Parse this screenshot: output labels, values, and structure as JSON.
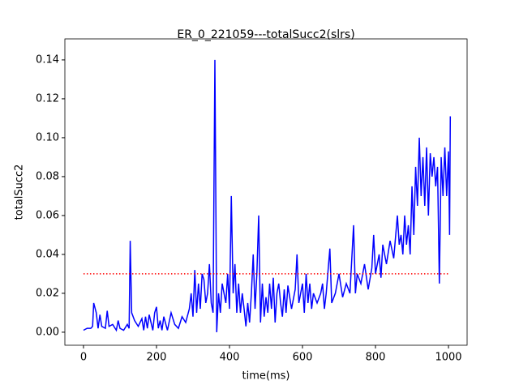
{
  "chart_data": {
    "type": "line",
    "title": "ER_0_221059---totalSucc2(slrs)",
    "x_label": "time(ms)",
    "y_label": "totalSucc2",
    "x": [
      0,
      10,
      20,
      25,
      28,
      35,
      40,
      45,
      50,
      60,
      65,
      70,
      80,
      90,
      95,
      100,
      110,
      120,
      125,
      128,
      132,
      140,
      150,
      160,
      165,
      170,
      175,
      180,
      190,
      195,
      200,
      205,
      210,
      215,
      220,
      230,
      240,
      250,
      260,
      270,
      280,
      290,
      295,
      300,
      305,
      310,
      315,
      320,
      325,
      330,
      335,
      340,
      345,
      350,
      355,
      360,
      365,
      370,
      375,
      380,
      390,
      395,
      400,
      405,
      410,
      415,
      420,
      425,
      430,
      435,
      440,
      445,
      450,
      455,
      460,
      465,
      470,
      475,
      480,
      485,
      490,
      495,
      500,
      505,
      510,
      515,
      520,
      525,
      530,
      535,
      540,
      545,
      550,
      555,
      560,
      570,
      580,
      585,
      590,
      595,
      600,
      605,
      610,
      615,
      620,
      625,
      630,
      640,
      650,
      655,
      660,
      665,
      675,
      680,
      690,
      700,
      710,
      720,
      730,
      740,
      745,
      750,
      760,
      770,
      780,
      790,
      795,
      800,
      810,
      815,
      820,
      830,
      840,
      850,
      860,
      865,
      870,
      875,
      880,
      885,
      890,
      895,
      900,
      905,
      910,
      915,
      920,
      925,
      930,
      935,
      940,
      945,
      950,
      955,
      960,
      965,
      970,
      975,
      980,
      985,
      990,
      995,
      1000,
      1003,
      1005
    ],
    "series": [
      {
        "name": "totalSucc2",
        "color": "#0000ff",
        "values": [
          0.001,
          0.002,
          0.002,
          0.003,
          0.015,
          0.01,
          0.002,
          0.009,
          0.003,
          0.002,
          0.011,
          0.003,
          0.004,
          0.001,
          0.006,
          0.002,
          0.001,
          0.004,
          0.002,
          0.047,
          0.01,
          0.006,
          0.003,
          0.007,
          0.001,
          0.008,
          0.002,
          0.009,
          0.001,
          0.01,
          0.013,
          0.002,
          0.006,
          0.001,
          0.008,
          0.001,
          0.01,
          0.004,
          0.002,
          0.008,
          0.005,
          0.012,
          0.02,
          0.008,
          0.032,
          0.01,
          0.025,
          0.012,
          0.03,
          0.027,
          0.015,
          0.02,
          0.035,
          0.015,
          0.01,
          0.14,
          0.0,
          0.02,
          0.01,
          0.025,
          0.015,
          0.03,
          0.012,
          0.07,
          0.02,
          0.035,
          0.01,
          0.025,
          0.01,
          0.02,
          0.012,
          0.003,
          0.015,
          0.005,
          0.02,
          0.04,
          0.012,
          0.03,
          0.06,
          0.005,
          0.025,
          0.008,
          0.018,
          0.01,
          0.025,
          0.012,
          0.028,
          0.005,
          0.02,
          0.025,
          0.015,
          0.008,
          0.022,
          0.01,
          0.024,
          0.012,
          0.022,
          0.04,
          0.015,
          0.02,
          0.025,
          0.01,
          0.03,
          0.015,
          0.025,
          0.012,
          0.02,
          0.015,
          0.02,
          0.025,
          0.012,
          0.02,
          0.043,
          0.015,
          0.02,
          0.03,
          0.018,
          0.025,
          0.02,
          0.055,
          0.02,
          0.03,
          0.025,
          0.035,
          0.022,
          0.033,
          0.05,
          0.03,
          0.04,
          0.028,
          0.045,
          0.035,
          0.047,
          0.038,
          0.06,
          0.045,
          0.05,
          0.04,
          0.06,
          0.045,
          0.055,
          0.04,
          0.075,
          0.05,
          0.085,
          0.065,
          0.1,
          0.07,
          0.09,
          0.065,
          0.095,
          0.06,
          0.092,
          0.08,
          0.09,
          0.075,
          0.085,
          0.025,
          0.09,
          0.07,
          0.095,
          0.07,
          0.093,
          0.05,
          0.111
        ]
      }
    ],
    "reference_line": {
      "y": 0.03,
      "x": [
        0,
        1000
      ],
      "color": "#ff0000"
    },
    "xlim": [
      -51,
      1051
    ],
    "xticks": [
      0,
      200,
      400,
      600,
      800,
      1000
    ],
    "ylim": [
      -0.0067,
      0.1508
    ],
    "yticks": [
      {
        "value": 0,
        "label": "0.00"
      },
      {
        "value": 0.02,
        "label": "0.02"
      },
      {
        "value": 0.04,
        "label": "0.04"
      },
      {
        "value": 0.06,
        "label": "0.06"
      },
      {
        "value": 0.08,
        "label": "0.08"
      },
      {
        "value": 0.1,
        "label": "0.10"
      },
      {
        "value": 0.12,
        "label": "0.12"
      },
      {
        "value": 0.14,
        "label": "0.14"
      }
    ],
    "grid": false
  }
}
